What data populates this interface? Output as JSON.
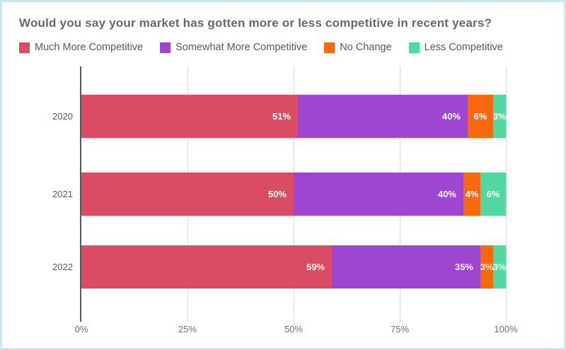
{
  "title": "Would you say your market has gotten more or less competitive in recent years?",
  "style": {
    "card_border_color": "#c9e8ee",
    "axis_line_color": "#54585c",
    "gridline_color": "#d7d7d7"
  },
  "chart_data": {
    "type": "bar",
    "orientation": "horizontal",
    "stacked": true,
    "title": "Would you say your market has gotten more or less competitive in recent years?",
    "categories": [
      "2020",
      "2021",
      "2022"
    ],
    "series": [
      {
        "name": "Much More Competitive",
        "color": "#d94c63",
        "values": [
          51,
          50,
          59
        ]
      },
      {
        "name": "Somewhat More Competitive",
        "color": "#9e45d1",
        "values": [
          40,
          40,
          35
        ]
      },
      {
        "name": "No Change",
        "color": "#f8690b",
        "values": [
          6,
          4,
          3
        ]
      },
      {
        "name": "Less Competitive",
        "color": "#50d8a0",
        "values": [
          3,
          6,
          3
        ]
      }
    ],
    "x_ticks": [
      "0%",
      "25%",
      "50%",
      "75%",
      "100%"
    ],
    "xlim": [
      0,
      100
    ],
    "value_suffix": "%",
    "legend_position": "top",
    "grid": "vertical",
    "data_labels": "inside-right, white"
  }
}
